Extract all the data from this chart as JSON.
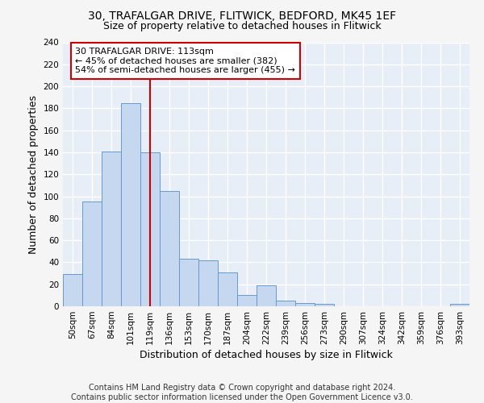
{
  "title_line1": "30, TRAFALGAR DRIVE, FLITWICK, BEDFORD, MK45 1EF",
  "title_line2": "Size of property relative to detached houses in Flitwick",
  "xlabel": "Distribution of detached houses by size in Flitwick",
  "ylabel": "Number of detached properties",
  "categories": [
    "50sqm",
    "67sqm",
    "84sqm",
    "101sqm",
    "119sqm",
    "136sqm",
    "153sqm",
    "170sqm",
    "187sqm",
    "204sqm",
    "222sqm",
    "239sqm",
    "256sqm",
    "273sqm",
    "290sqm",
    "307sqm",
    "324sqm",
    "342sqm",
    "359sqm",
    "376sqm",
    "393sqm"
  ],
  "values": [
    29,
    95,
    141,
    185,
    140,
    105,
    43,
    42,
    31,
    10,
    19,
    5,
    3,
    2,
    0,
    0,
    0,
    0,
    0,
    0,
    2
  ],
  "bar_color": "#c5d8f0",
  "bar_edge_color": "#6699cc",
  "vline_x": 4,
  "vline_color": "#cc0000",
  "annotation_text": "30 TRAFALGAR DRIVE: 113sqm\n← 45% of detached houses are smaller (382)\n54% of semi-detached houses are larger (455) →",
  "annotation_box_color": "#ffffff",
  "annotation_box_edge_color": "#cc0000",
  "ylim": [
    0,
    240
  ],
  "yticks": [
    0,
    20,
    40,
    60,
    80,
    100,
    120,
    140,
    160,
    180,
    200,
    220,
    240
  ],
  "footer_line1": "Contains HM Land Registry data © Crown copyright and database right 2024.",
  "footer_line2": "Contains public sector information licensed under the Open Government Licence v3.0.",
  "bg_color": "#e8eef8",
  "grid_color": "#ffffff",
  "fig_bg_color": "#f5f5f5",
  "title_fontsize": 10,
  "subtitle_fontsize": 9,
  "axis_label_fontsize": 9,
  "tick_fontsize": 7.5,
  "annotation_fontsize": 8,
  "footer_fontsize": 7
}
